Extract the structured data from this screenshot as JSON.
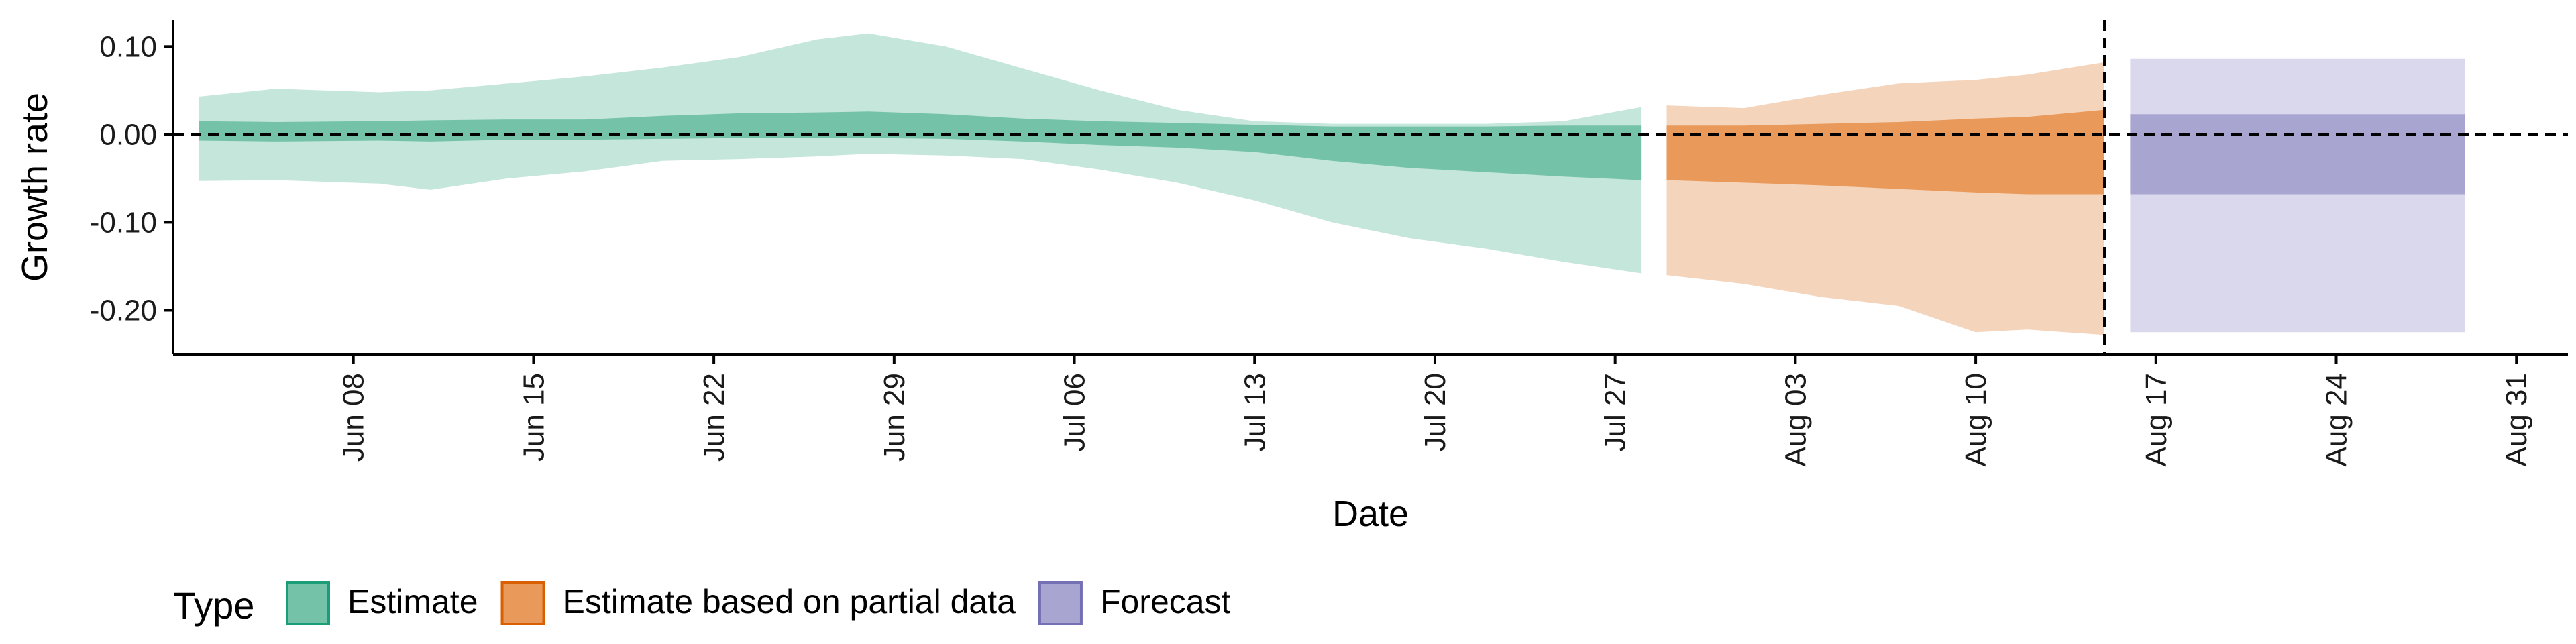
{
  "chart_data": {
    "type": "area",
    "xlabel": "Date",
    "ylabel": "Growth rate",
    "ylim": [
      -0.25,
      0.13
    ],
    "xlim": [
      "2021-06-01",
      "2021-09-02"
    ],
    "y_ticks": [
      0.1,
      0.0,
      -0.1,
      -0.2
    ],
    "y_tick_labels": [
      "0.10",
      "0.00",
      "-0.10",
      "-0.20"
    ],
    "x_ticks": [
      "2021-06-08",
      "2021-06-15",
      "2021-06-22",
      "2021-06-29",
      "2021-07-06",
      "2021-07-13",
      "2021-07-20",
      "2021-07-27",
      "2021-08-03",
      "2021-08-10",
      "2021-08-17",
      "2021-08-24",
      "2021-08-31"
    ],
    "x_tick_labels": [
      "Jun 08",
      "Jun 15",
      "Jun 22",
      "Jun 29",
      "Jul 06",
      "Jul 13",
      "Jul 20",
      "Jul 27",
      "Aug 03",
      "Aug 10",
      "Aug 17",
      "Aug 24",
      "Aug 31"
    ],
    "reference_lines": {
      "horizontal_y": 0.0,
      "vertical_x": "2021-08-15"
    },
    "grid": false,
    "legend": {
      "title": "Type",
      "position": "bottom-left",
      "items": [
        {
          "label": "Estimate",
          "fill": "#74c3a9",
          "stroke": "#1b9e77"
        },
        {
          "label": "Estimate based on partial data",
          "fill": "#e99a5a",
          "stroke": "#d95f02"
        },
        {
          "label": "Forecast",
          "fill": "#a9a5d1",
          "stroke": "#7570b3"
        }
      ]
    },
    "series": [
      {
        "name": "Estimate",
        "color_outer": "#c5e6da",
        "color_inner": "#74c3a9",
        "points": [
          {
            "x": "2021-06-02",
            "lo90": -0.053,
            "lo50": -0.007,
            "hi50": 0.015,
            "hi90": 0.043
          },
          {
            "x": "2021-06-05",
            "lo90": -0.052,
            "lo50": -0.008,
            "hi50": 0.014,
            "hi90": 0.052
          },
          {
            "x": "2021-06-09",
            "lo90": -0.056,
            "lo50": -0.007,
            "hi50": 0.015,
            "hi90": 0.048
          },
          {
            "x": "2021-06-11",
            "lo90": -0.063,
            "lo50": -0.008,
            "hi50": 0.016,
            "hi90": 0.05
          },
          {
            "x": "2021-06-14",
            "lo90": -0.05,
            "lo50": -0.006,
            "hi50": 0.017,
            "hi90": 0.058
          },
          {
            "x": "2021-06-17",
            "lo90": -0.042,
            "lo50": -0.006,
            "hi50": 0.017,
            "hi90": 0.066
          },
          {
            "x": "2021-06-20",
            "lo90": -0.03,
            "lo50": -0.005,
            "hi50": 0.021,
            "hi90": 0.076
          },
          {
            "x": "2021-06-23",
            "lo90": -0.028,
            "lo50": -0.004,
            "hi50": 0.024,
            "hi90": 0.088
          },
          {
            "x": "2021-06-26",
            "lo90": -0.025,
            "lo50": -0.004,
            "hi50": 0.025,
            "hi90": 0.108
          },
          {
            "x": "2021-06-28",
            "lo90": -0.022,
            "lo50": -0.004,
            "hi50": 0.026,
            "hi90": 0.115
          },
          {
            "x": "2021-07-01",
            "lo90": -0.024,
            "lo50": -0.005,
            "hi50": 0.023,
            "hi90": 0.1
          },
          {
            "x": "2021-07-04",
            "lo90": -0.028,
            "lo50": -0.008,
            "hi50": 0.018,
            "hi90": 0.075
          },
          {
            "x": "2021-07-07",
            "lo90": -0.04,
            "lo50": -0.012,
            "hi50": 0.015,
            "hi90": 0.05
          },
          {
            "x": "2021-07-10",
            "lo90": -0.055,
            "lo50": -0.015,
            "hi50": 0.013,
            "hi90": 0.028
          },
          {
            "x": "2021-07-13",
            "lo90": -0.075,
            "lo50": -0.02,
            "hi50": 0.011,
            "hi90": 0.015
          },
          {
            "x": "2021-07-16",
            "lo90": -0.1,
            "lo50": -0.03,
            "hi50": 0.009,
            "hi90": 0.012
          },
          {
            "x": "2021-07-19",
            "lo90": -0.118,
            "lo50": -0.038,
            "hi50": 0.009,
            "hi90": 0.012
          },
          {
            "x": "2021-07-22",
            "lo90": -0.13,
            "lo50": -0.043,
            "hi50": 0.009,
            "hi90": 0.012
          },
          {
            "x": "2021-07-25",
            "lo90": -0.145,
            "lo50": -0.048,
            "hi50": 0.01,
            "hi90": 0.015
          },
          {
            "x": "2021-07-28",
            "lo90": -0.158,
            "lo50": -0.052,
            "hi50": 0.01,
            "hi90": 0.031
          }
        ]
      },
      {
        "name": "Estimate based on partial data",
        "color_outer": "#f5d4bc",
        "color_inner": "#e99a5a",
        "points": [
          {
            "x": "2021-07-29",
            "lo90": -0.16,
            "lo50": -0.052,
            "hi50": 0.01,
            "hi90": 0.033
          },
          {
            "x": "2021-08-01",
            "lo90": -0.17,
            "lo50": -0.055,
            "hi50": 0.01,
            "hi90": 0.03
          },
          {
            "x": "2021-08-04",
            "lo90": -0.185,
            "lo50": -0.058,
            "hi50": 0.012,
            "hi90": 0.045
          },
          {
            "x": "2021-08-07",
            "lo90": -0.195,
            "lo50": -0.062,
            "hi50": 0.014,
            "hi90": 0.058
          },
          {
            "x": "2021-08-10",
            "lo90": -0.225,
            "lo50": -0.066,
            "hi50": 0.018,
            "hi90": 0.062
          },
          {
            "x": "2021-08-12",
            "lo90": -0.222,
            "lo50": -0.068,
            "hi50": 0.02,
            "hi90": 0.068
          },
          {
            "x": "2021-08-15",
            "lo90": -0.228,
            "lo50": -0.068,
            "hi50": 0.028,
            "hi90": 0.082
          }
        ]
      },
      {
        "name": "Forecast",
        "color_outer": "#dad8ec",
        "color_inner": "#a9a5d1",
        "points": [
          {
            "x": "2021-08-16",
            "lo90": -0.225,
            "lo50": -0.068,
            "hi50": 0.023,
            "hi90": 0.086
          },
          {
            "x": "2021-08-29",
            "lo90": -0.225,
            "lo50": -0.068,
            "hi50": 0.023,
            "hi90": 0.086
          }
        ]
      }
    ]
  }
}
